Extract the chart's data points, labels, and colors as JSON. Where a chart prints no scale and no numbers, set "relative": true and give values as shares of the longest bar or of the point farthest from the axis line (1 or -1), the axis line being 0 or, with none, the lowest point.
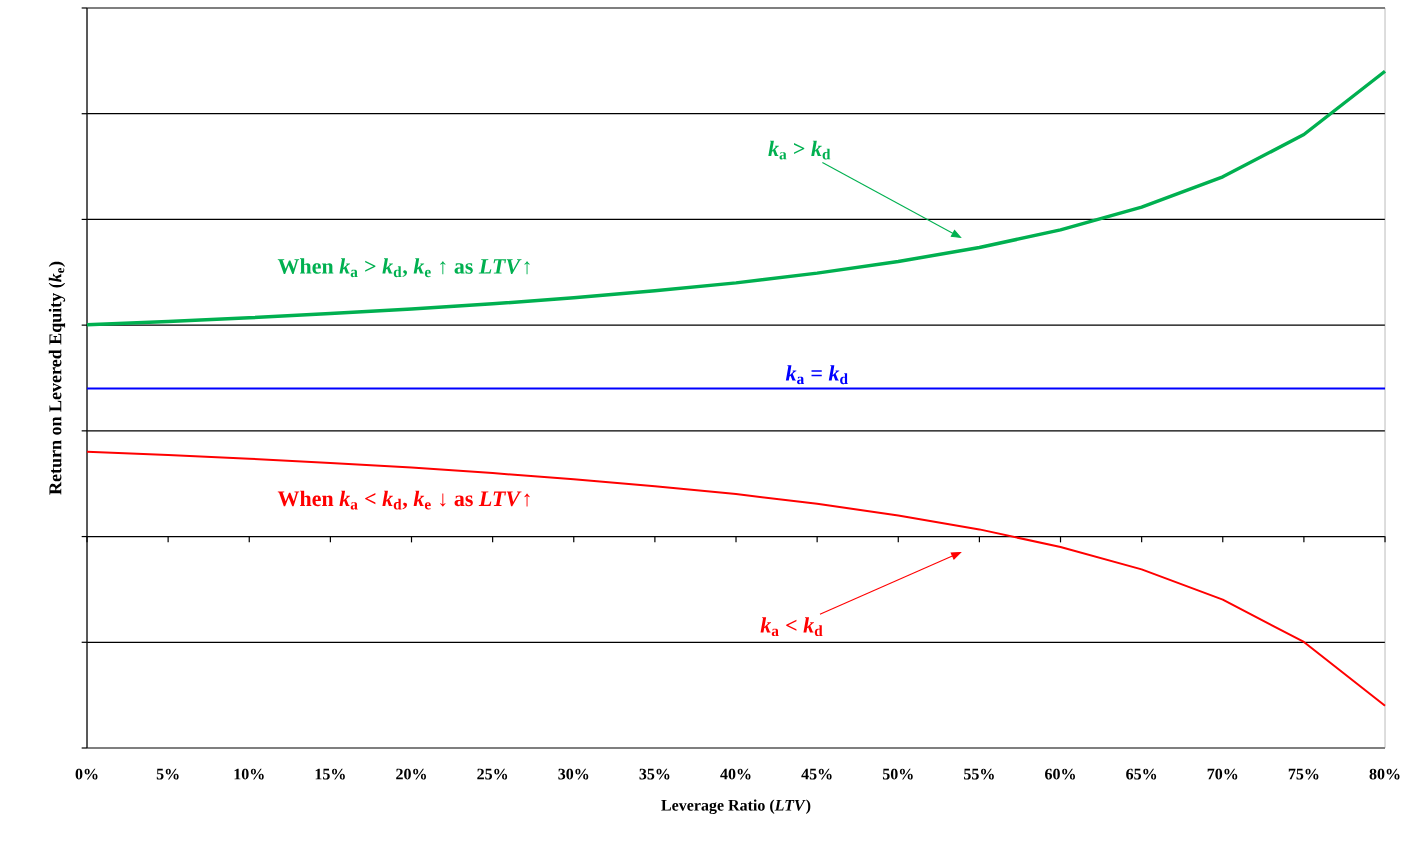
{
  "chart_data": {
    "type": "line",
    "relative": true,
    "xlabel": "Leverage Ratio (*LTV*)",
    "ylabel": "Return on Levered Equity (*k*$_{e}$)",
    "x": [
      0,
      5,
      10,
      15,
      20,
      25,
      30,
      35,
      40,
      45,
      50,
      55,
      60,
      65,
      70,
      75,
      80
    ],
    "xlim": [
      0,
      80
    ],
    "xticks": [
      {
        "value": 0,
        "label": "0%"
      },
      {
        "value": 5,
        "label": "5%"
      },
      {
        "value": 10,
        "label": "10%"
      },
      {
        "value": 15,
        "label": "15%"
      },
      {
        "value": 20,
        "label": "20%"
      },
      {
        "value": 25,
        "label": "25%"
      },
      {
        "value": 30,
        "label": "30%"
      },
      {
        "value": 35,
        "label": "35%"
      },
      {
        "value": 40,
        "label": "40%"
      },
      {
        "value": 45,
        "label": "45%"
      },
      {
        "value": 50,
        "label": "50%"
      },
      {
        "value": 55,
        "label": "55%"
      },
      {
        "value": 60,
        "label": "60%"
      },
      {
        "value": 65,
        "label": "65%"
      },
      {
        "value": 70,
        "label": "70%"
      },
      {
        "value": 75,
        "label": "75%"
      },
      {
        "value": 80,
        "label": "80%"
      }
    ],
    "series": [
      {
        "color": "#00b050",
        "values": [
          0.455,
          0.462,
          0.47,
          0.479,
          0.489,
          0.5,
          0.513,
          0.528,
          0.545,
          0.566,
          0.591,
          0.621,
          0.659,
          0.708,
          0.773,
          0.864,
          1
        ]
      },
      {
        "color": "#0000ff",
        "x": [
          0,
          80
        ],
        "values": [
          0.318,
          0.318
        ]
      },
      {
        "color": "#ff0000",
        "values": [
          0.182,
          0.175,
          0.167,
          0.158,
          0.148,
          0.136,
          0.123,
          0.108,
          0.091,
          0.07,
          0.045,
          0.015,
          -0.023,
          -0.071,
          -0.136,
          -0.227,
          -0.364
        ]
      }
    ],
    "annotations": [
      "When *k*$_{a}$ > *k*$_{d}$, *k*$_{e}$ ↑ as *LTV*↑",
      "*k*$_{a}$ > *k*$_{d}$",
      {
        "text": "*k*$_{a}$ = *k*$_{d}$",
        "x": 45,
        "y": 0.318
      },
      "When *k*$_{a}$ < *k*$_{d}$, *k*$_{e}$ ↓ as *LTV*↑",
      "*k*$_{a}$ < *k*$_{d}$"
    ],
    "grid": "y",
    "tick_labels": "x"
  }
}
